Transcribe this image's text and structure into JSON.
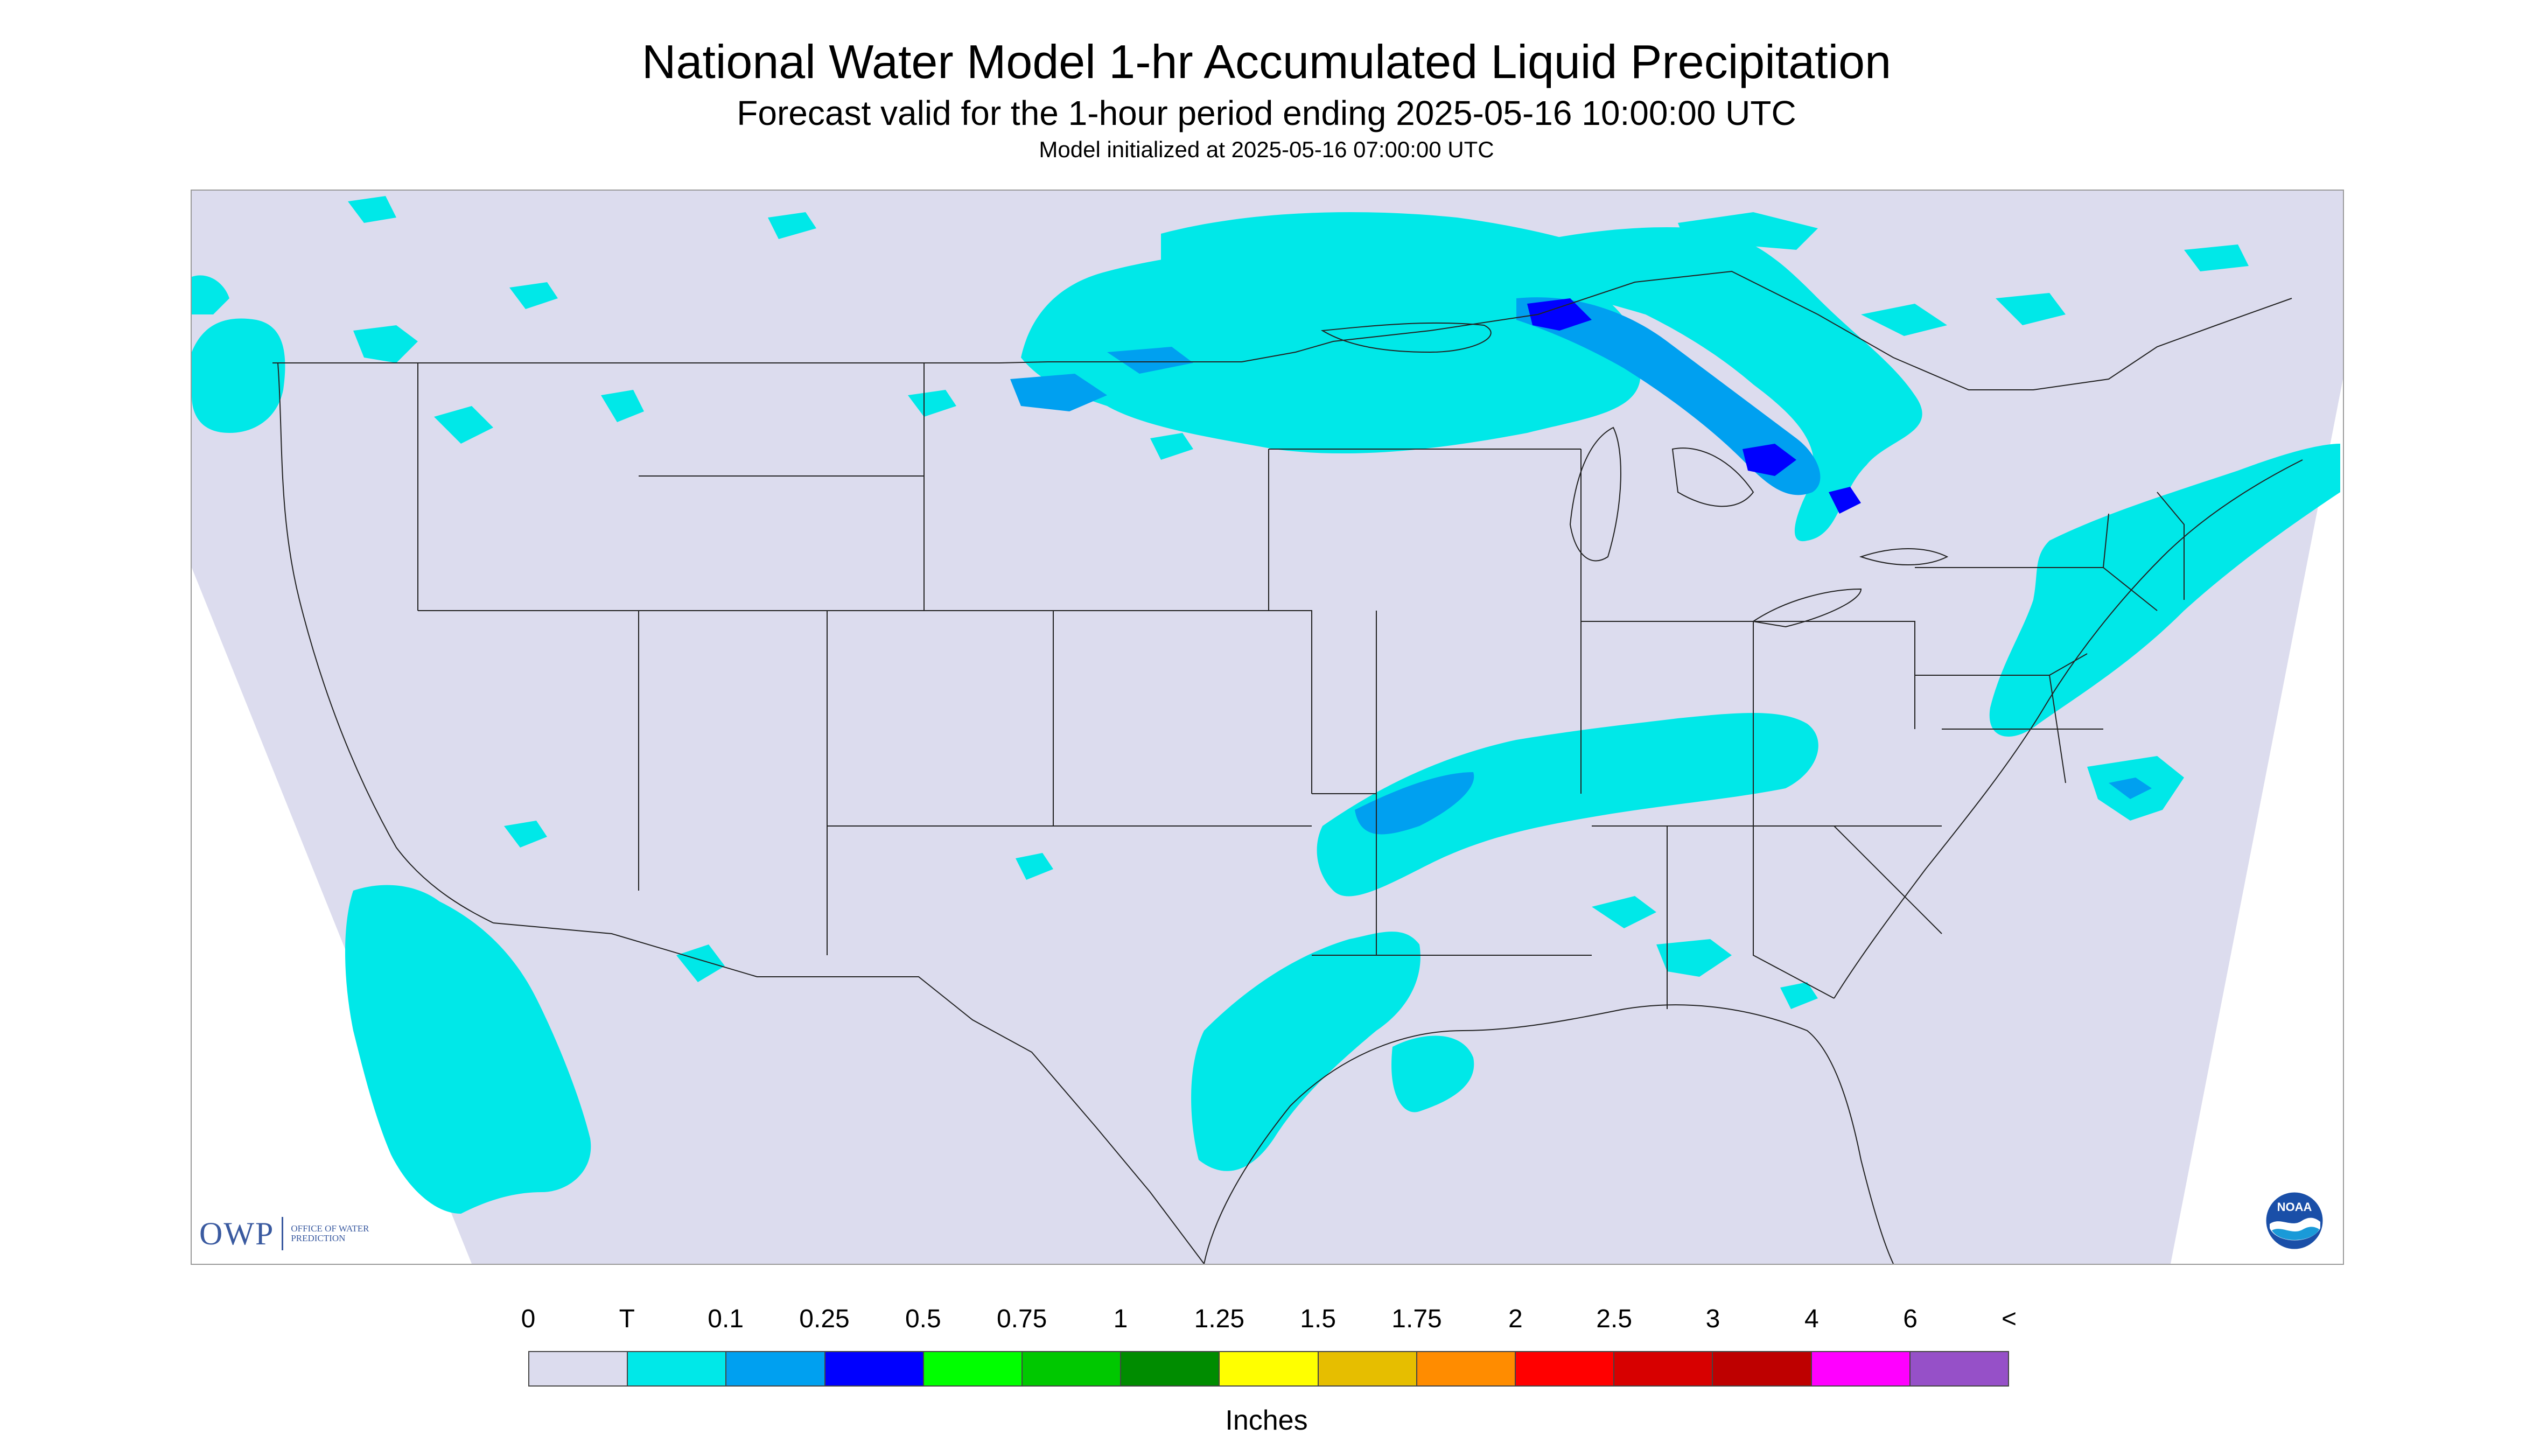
{
  "header": {
    "title": "National Water Model 1-hr Accumulated Liquid Precipitation",
    "subtitle": "Forecast valid for the 1-hour period ending 2025-05-16 10:00:00 UTC",
    "init": "Model initialized at 2025-05-16 07:00:00 UTC"
  },
  "map": {
    "background_color": "#dcdcee",
    "outside_color": "#ffffff",
    "boundary_color": "#222222",
    "precip_light_color": "#00e8e8",
    "precip_medium_color": "#00a0f0",
    "precip_heavy_color": "#0000ff"
  },
  "logos": {
    "owp_mark": "OWP",
    "owp_text": "Office of Water Prediction",
    "noaa_text": "NOAA",
    "noaa_icon": "noaa-logo-icon"
  },
  "legend": {
    "tick_labels": [
      "0",
      "T",
      "0.1",
      "0.25",
      "0.5",
      "0.75",
      "1",
      "1.25",
      "1.5",
      "1.75",
      "2",
      "2.5",
      "3",
      "4",
      "6",
      "<"
    ],
    "colors": [
      "#dcdcee",
      "#00e8e8",
      "#00a0f0",
      "#0000ff",
      "#00ff00",
      "#00c800",
      "#008c00",
      "#ffff00",
      "#e6be00",
      "#ff8c00",
      "#ff0000",
      "#d70000",
      "#be0000",
      "#ff00ff",
      "#9650c8"
    ],
    "units": "Inches"
  }
}
